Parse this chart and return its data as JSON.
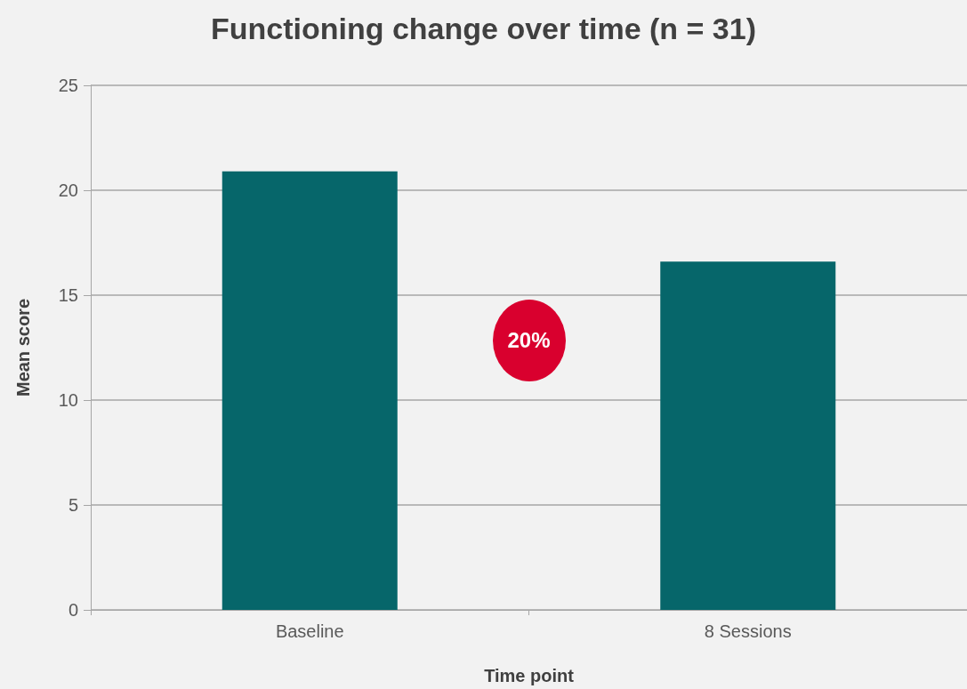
{
  "chart_data": {
    "type": "bar",
    "title": "Functioning change over time (n = 31)",
    "xlabel": "Time point",
    "ylabel": "Mean score",
    "categories": [
      "Baseline",
      "8 Sessions"
    ],
    "values": [
      20.9,
      16.6
    ],
    "color": "#06666a",
    "ylim": [
      0,
      25
    ],
    "yticks": [
      0,
      5,
      10,
      15,
      20,
      25
    ],
    "grid": "y",
    "annotations": [
      "20%"
    ]
  }
}
